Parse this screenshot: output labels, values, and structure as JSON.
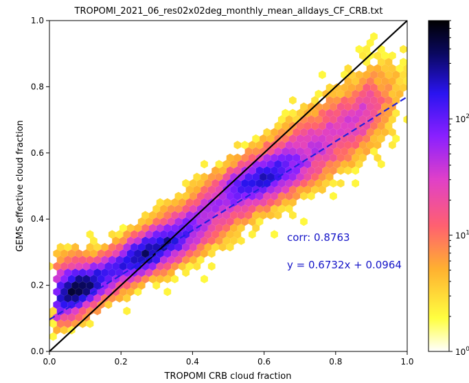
{
  "chart_data": {
    "type": "hexbin",
    "title": "TROPOMI_2021_06_res02x02deg_monthly_mean_alldays_CF_CRB.txt",
    "xlabel": "TROPOMI CRB cloud fraction",
    "ylabel": "GEMS effective cloud fraction",
    "xlim": [
      0.0,
      1.0
    ],
    "ylim": [
      0.0,
      1.0
    ],
    "xticks": [
      "0.0",
      "0.2",
      "0.4",
      "0.6",
      "0.8",
      "1.0"
    ],
    "yticks": [
      "0.0",
      "0.2",
      "0.4",
      "0.6",
      "0.8",
      "1.0"
    ],
    "colorbar": {
      "scale": "log",
      "range": [
        1,
        700
      ],
      "colormap": "gnuplot2_r",
      "ticks": [
        {
          "value": 1,
          "base": "10",
          "exp": "0"
        },
        {
          "value": 10,
          "base": "10",
          "exp": "1"
        },
        {
          "value": 100,
          "base": "10",
          "exp": "2"
        }
      ]
    },
    "one_to_one_line": {
      "color": "#000000",
      "points": [
        [
          0.0,
          0.0
        ],
        [
          1.0,
          1.0
        ]
      ]
    },
    "regression_line": {
      "color": "#1f1fdd",
      "slope": 0.6732,
      "intercept": 0.0964,
      "style": "dashed"
    },
    "annotations": {
      "corr": "corr: 0.8763",
      "equation": "y = 0.6732x + 0.0964",
      "color": "#1414c8"
    },
    "density_model": {
      "trend_slope": 0.68,
      "trend_intercept": 0.12,
      "peak_x": 0.33,
      "peak_y": 0.28,
      "max_count": 700
    }
  }
}
